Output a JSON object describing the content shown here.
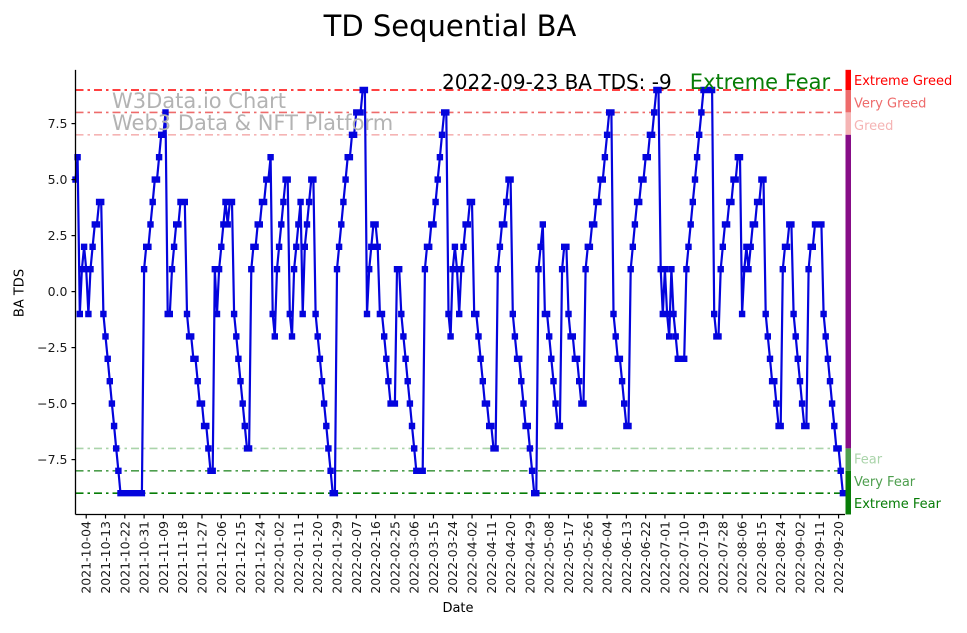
{
  "title": "TD Sequential BA",
  "watermark": {
    "line1": "W3Data.io Chart",
    "line2": "Web3 Data & NFT Platform",
    "color": "#b3b3b3"
  },
  "annotation": {
    "text": "2022-09-23 BA TDS: -9",
    "status": "Extreme Fear",
    "status_color": "#077d07"
  },
  "axes": {
    "xlabel": "Date",
    "ylabel": "BA TDS",
    "ytick_labels": [
      "7.5",
      "5.0",
      "2.5",
      "0.0",
      "−2.5",
      "−5.0",
      "−7.5"
    ],
    "ytick_values": [
      7.5,
      5.0,
      2.5,
      0.0,
      -2.5,
      -5.0,
      -7.5
    ],
    "spine_color": "#000000"
  },
  "thresholds": [
    {
      "level": 9,
      "label": "Extreme Greed",
      "color": "#ff0000"
    },
    {
      "level": 8,
      "label": "Very Greed",
      "color": "#ee6b6b"
    },
    {
      "level": 7,
      "label": "Greed",
      "color": "#f5b4b4"
    },
    {
      "level": -7,
      "label": "Fear",
      "color": "#aad4aa"
    },
    {
      "level": -8,
      "label": "Very Fear",
      "color": "#4d9e4d"
    },
    {
      "level": -9,
      "label": "Extreme Fear",
      "color": "#077d07"
    }
  ],
  "right_bar": {
    "segments": [
      {
        "from": 9.9,
        "to": 9,
        "color": "#ff0000"
      },
      {
        "from": 9,
        "to": 8,
        "color": "#ee6b6b"
      },
      {
        "from": 8,
        "to": 7,
        "color": "#f5b4b4"
      },
      {
        "from": 7,
        "to": -7,
        "color": "#870d87"
      },
      {
        "from": -7,
        "to": -8,
        "color": "#4d9e4d"
      },
      {
        "from": -8,
        "to": -9.95,
        "color": "#077d07"
      }
    ]
  },
  "chart_data": {
    "type": "line",
    "name": "BA TDS",
    "line_color": "#0404dd",
    "marker": "square",
    "ylim": [
      -9.95,
      9.9
    ],
    "start_date": "2021-09-29",
    "end_date": "2022-09-23",
    "x_tick_first_index": 5,
    "x_tick_step": 9,
    "x_tick_labels": [
      "2021-10-04",
      "2021-10-13",
      "2021-10-22",
      "2021-10-31",
      "2021-11-09",
      "2021-11-18",
      "2021-11-27",
      "2021-12-06",
      "2021-12-15",
      "2021-12-24",
      "2022-01-02",
      "2022-01-11",
      "2022-01-20",
      "2022-01-29",
      "2022-02-07",
      "2022-02-16",
      "2022-02-25",
      "2022-03-06",
      "2022-03-15",
      "2022-03-24",
      "2022-04-02",
      "2022-04-11",
      "2022-04-20",
      "2022-04-29",
      "2022-05-08",
      "2022-05-17",
      "2022-05-26",
      "2022-06-04",
      "2022-06-13",
      "2022-06-22",
      "2022-07-01",
      "2022-07-10",
      "2022-07-19",
      "2022-07-28",
      "2022-08-06",
      "2022-08-15",
      "2022-08-24",
      "2022-09-02",
      "2022-09-11",
      "2022-09-20"
    ],
    "values": [
      5,
      6,
      -1,
      1,
      2,
      1,
      -1,
      1,
      2,
      3,
      3,
      4,
      4,
      -1,
      -2,
      -3,
      -4,
      -5,
      -6,
      -7,
      -8,
      -9,
      -9,
      -9,
      -9,
      -9,
      -9,
      -9,
      -9,
      -9,
      -9,
      -9,
      1,
      2,
      2,
      3,
      4,
      5,
      5,
      6,
      7,
      7,
      8,
      -1,
      -1,
      1,
      2,
      3,
      3,
      4,
      4,
      4,
      -1,
      -2,
      -2,
      -3,
      -3,
      -4,
      -5,
      -5,
      -6,
      -6,
      -7,
      -8,
      -8,
      1,
      -1,
      1,
      2,
      3,
      4,
      3,
      4,
      4,
      -1,
      -2,
      -3,
      -4,
      -5,
      -6,
      -7,
      -7,
      1,
      2,
      2,
      3,
      3,
      4,
      4,
      5,
      5,
      6,
      -1,
      -2,
      1,
      2,
      3,
      4,
      5,
      5,
      -1,
      -2,
      1,
      2,
      3,
      4,
      -1,
      2,
      3,
      4,
      5,
      5,
      -1,
      -2,
      -3,
      -4,
      -5,
      -6,
      -7,
      -8,
      -9,
      -9,
      1,
      2,
      3,
      4,
      5,
      6,
      6,
      7,
      7,
      8,
      8,
      8,
      9,
      9,
      -1,
      1,
      2,
      3,
      3,
      2,
      -1,
      -1,
      -2,
      -3,
      -4,
      -5,
      -5,
      -5,
      1,
      1,
      -1,
      -2,
      -3,
      -4,
      -5,
      -6,
      -7,
      -8,
      -8,
      -8,
      -8,
      1,
      2,
      2,
      3,
      3,
      4,
      5,
      6,
      7,
      8,
      8,
      -1,
      -2,
      1,
      2,
      1,
      -1,
      1,
      2,
      3,
      3,
      4,
      4,
      -1,
      -1,
      -2,
      -3,
      -4,
      -5,
      -5,
      -6,
      -6,
      -7,
      -7,
      1,
      2,
      3,
      3,
      4,
      5,
      5,
      -1,
      -2,
      -3,
      -3,
      -4,
      -5,
      -6,
      -6,
      -7,
      -8,
      -9,
      -9,
      1,
      2,
      3,
      -1,
      -1,
      -2,
      -3,
      -4,
      -5,
      -6,
      -6,
      1,
      2,
      2,
      -1,
      -2,
      -2,
      -3,
      -3,
      -4,
      -5,
      -5,
      1,
      2,
      2,
      3,
      3,
      4,
      4,
      5,
      5,
      6,
      7,
      8,
      8,
      -1,
      -2,
      -3,
      -3,
      -4,
      -5,
      -6,
      -6,
      1,
      2,
      3,
      4,
      4,
      5,
      5,
      6,
      6,
      7,
      7,
      8,
      9,
      9,
      1,
      -1,
      1,
      -1,
      -2,
      1,
      -1,
      -2,
      -3,
      -3,
      -3,
      -3,
      1,
      2,
      3,
      4,
      5,
      6,
      7,
      8,
      9,
      9,
      9,
      9,
      9,
      -1,
      -2,
      -2,
      1,
      2,
      3,
      3,
      4,
      4,
      5,
      5,
      6,
      6,
      -1,
      1,
      2,
      1,
      2,
      3,
      3,
      4,
      4,
      5,
      5,
      -1,
      -2,
      -3,
      -4,
      -4,
      -5,
      -6,
      -6,
      1,
      2,
      2,
      3,
      3,
      -1,
      -2,
      -3,
      -4,
      -5,
      -6,
      -6,
      1,
      2,
      2,
      3,
      3,
      3,
      3,
      -1,
      -2,
      -3,
      -4,
      -5,
      -6,
      -7,
      -7,
      -8,
      -9,
      -9
    ]
  }
}
